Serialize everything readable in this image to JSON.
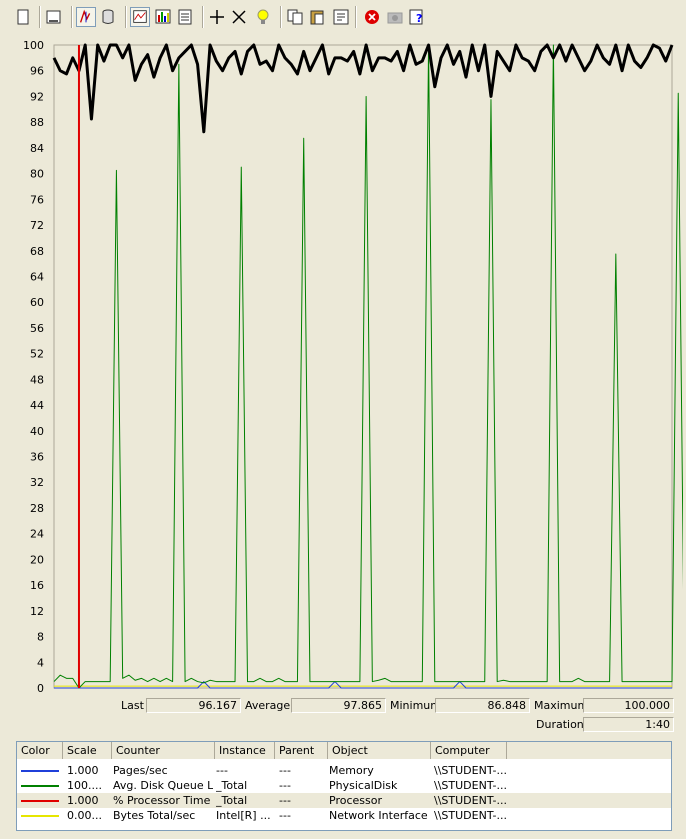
{
  "toolbar": {
    "buttons": [
      {
        "name": "new-counter-set-icon"
      },
      {
        "name": "clear-display-icon"
      },
      {
        "name": "view-current-activity-icon"
      },
      {
        "name": "view-log-data-icon"
      },
      {
        "name": "view-graph-icon"
      },
      {
        "name": "view-histogram-icon"
      },
      {
        "name": "view-report-icon"
      },
      {
        "name": "add-counter-icon"
      },
      {
        "name": "delete-counter-icon"
      },
      {
        "name": "highlight-icon"
      },
      {
        "name": "copy-properties-icon"
      },
      {
        "name": "paste-counter-list-icon"
      },
      {
        "name": "properties-icon"
      },
      {
        "name": "freeze-display-icon"
      },
      {
        "name": "update-data-icon"
      },
      {
        "name": "help-icon"
      }
    ]
  },
  "chart_data": {
    "type": "line",
    "title": "",
    "xlabel": "",
    "ylabel": "",
    "ylim": [
      0,
      100
    ],
    "y_ticks": [
      "100",
      "96",
      "92",
      "88",
      "84",
      "80",
      "76",
      "72",
      "68",
      "64",
      "60",
      "56",
      "52",
      "48",
      "44",
      "40",
      "36",
      "32",
      "28",
      "24",
      "20",
      "16",
      "12",
      "8",
      "4",
      "0"
    ],
    "grid": false,
    "samples": 100,
    "series": [
      {
        "name": "% Processor Time",
        "color": "#000000",
        "width": 3,
        "values": [
          98,
          96,
          95.5,
          98,
          96,
          100,
          88.5,
          100,
          97.5,
          100,
          100,
          98,
          100,
          94.5,
          97,
          98.5,
          95,
          98,
          100,
          96,
          98,
          99,
          100,
          97,
          86.5,
          100,
          97.5,
          96,
          98,
          99,
          95.5,
          99,
          100,
          97,
          97.5,
          96,
          100,
          98,
          97,
          95.5,
          99,
          96,
          98,
          100,
          95.5,
          98,
          98,
          97.5,
          99,
          95.5,
          100,
          96,
          98,
          98,
          97.5,
          99,
          96,
          100,
          97,
          97.5,
          100,
          93.5,
          98,
          100,
          97,
          99,
          95,
          100,
          96,
          100,
          92,
          99,
          97.5,
          96,
          100,
          98,
          97.5,
          96,
          99,
          100,
          98,
          100,
          97.5,
          100,
          98,
          96,
          97.5,
          100,
          98,
          97,
          100,
          96,
          100,
          97.5,
          96.5,
          98,
          100,
          99.5,
          97.5,
          100
        ]
      },
      {
        "name": "Avg. Disk Queue Length",
        "color": "#008000",
        "width": 1,
        "values": [
          1,
          2,
          1.5,
          1.5,
          0,
          1,
          1,
          1,
          1,
          1,
          80.5,
          1.5,
          2,
          1.2,
          1.5,
          1,
          1.5,
          1,
          1.5,
          1,
          97,
          1,
          1.5,
          1,
          0.8,
          1.2,
          1,
          1,
          1,
          1,
          81,
          1,
          1,
          1.5,
          1,
          1,
          1.5,
          1,
          1,
          1,
          85.5,
          1,
          1,
          1,
          1,
          1,
          1,
          1,
          1,
          1,
          92,
          1,
          1.2,
          1.5,
          1,
          1,
          1,
          1,
          1,
          1,
          100,
          1,
          1,
          1,
          1,
          1,
          1,
          1,
          1,
          1,
          91.5,
          1,
          1.2,
          1,
          1,
          1,
          1,
          1,
          1,
          1,
          100,
          1,
          1,
          1,
          1.5,
          1,
          1,
          1,
          1,
          1,
          67.5,
          1,
          1,
          1,
          1,
          1,
          1,
          1,
          1,
          1,
          92.5,
          1
        ]
      },
      {
        "name": "Pages/sec",
        "color": "#1f3fd9",
        "width": 1,
        "values": [
          0,
          0,
          0,
          0,
          0,
          0,
          0,
          0,
          0,
          0,
          0,
          0,
          0,
          0,
          0,
          0,
          0,
          0,
          0,
          0,
          0,
          0,
          0,
          0,
          1,
          0,
          0,
          0,
          0,
          0,
          0,
          0,
          0,
          0,
          0,
          0,
          0,
          0,
          0,
          0,
          0,
          0,
          0,
          0,
          0,
          1,
          0,
          0,
          0,
          0,
          0,
          0,
          0,
          0,
          0,
          0,
          0,
          0,
          0,
          0,
          0,
          0,
          0,
          0,
          0,
          1,
          0,
          0,
          0,
          0,
          0,
          0,
          0,
          0,
          0,
          0,
          0,
          0,
          0,
          0,
          0,
          0,
          0,
          0,
          0,
          0,
          0,
          0,
          0,
          0,
          0,
          0,
          0,
          0,
          0,
          0,
          0,
          0,
          0,
          0
        ]
      },
      {
        "name": "Bytes Total/sec",
        "color": "#e6e600",
        "width": 1,
        "values": [
          0.3,
          0.3,
          0.3,
          0.3,
          0.3,
          0.3,
          0.3,
          0.3,
          0.3,
          0.3,
          0.3,
          0.3,
          0.3,
          0.3,
          0.3,
          0.3,
          0.3,
          0.3,
          0.3,
          0.3,
          0.3,
          0.3,
          0.3,
          0.3,
          0.3,
          0.3,
          0.3,
          0.3,
          0.3,
          0.3,
          0.3,
          0.3,
          0.3,
          0.3,
          0.3,
          0.3,
          0.3,
          0.3,
          0.3,
          0.3,
          0.3,
          0.3,
          0.3,
          0.3,
          0.3,
          0.3,
          0.3,
          0.3,
          0.3,
          0.3,
          0.3,
          0.3,
          0.3,
          0.3,
          0.3,
          0.3,
          0.3,
          0.3,
          0.3,
          0.3,
          0.3,
          0.3,
          0.3,
          0.3,
          0.3,
          0.3,
          0.3,
          0.3,
          0.3,
          0.3,
          0.3,
          0.3,
          0.3,
          0.3,
          0.3,
          0.3,
          0.3,
          0.3,
          0.3,
          0.3,
          0.3,
          0.3,
          0.3,
          0.3,
          0.3,
          0.3,
          0.3,
          0.3,
          0.3,
          0.3,
          0.3,
          0.3,
          0.3,
          0.3,
          0.3,
          0.3,
          0.3,
          0.3,
          0.3,
          0.3
        ]
      }
    ],
    "time_bar_index": 4,
    "time_bar_color": "#e00000"
  },
  "stats": {
    "last_label": "Last",
    "last_value": "96.167",
    "average_label": "Average",
    "average_value": "97.865",
    "minimum_label": "Minimum",
    "minimum_value": "86.848",
    "maximum_label": "Maximum",
    "maximum_value": "100.000",
    "duration_label": "Duration",
    "duration_value": "1:40"
  },
  "legend": {
    "headers": {
      "color": "Color",
      "scale": "Scale",
      "counter": "Counter",
      "instance": "Instance",
      "parent": "Parent",
      "object": "Object",
      "computer": "Computer"
    },
    "rows": [
      {
        "color": "#1f3fd9",
        "scale": "1.000",
        "counter": "Pages/sec",
        "instance": "---",
        "parent": "---",
        "object": "Memory",
        "computer": "\\\\STUDENT-..."
      },
      {
        "color": "#008000",
        "scale": "100....",
        "counter": "Avg. Disk Queue L...",
        "instance": "_Total",
        "parent": "---",
        "object": "PhysicalDisk",
        "computer": "\\\\STUDENT-..."
      },
      {
        "color": "#e00000",
        "scale": "1.000",
        "counter": "% Processor Time",
        "instance": "_Total",
        "parent": "---",
        "object": "Processor",
        "computer": "\\\\STUDENT-..."
      },
      {
        "color": "#e6e600",
        "scale": "0.00...",
        "counter": "Bytes Total/sec",
        "instance": "Intel[R] ...",
        "parent": "---",
        "object": "Network Interface",
        "computer": "\\\\STUDENT-..."
      }
    ]
  }
}
